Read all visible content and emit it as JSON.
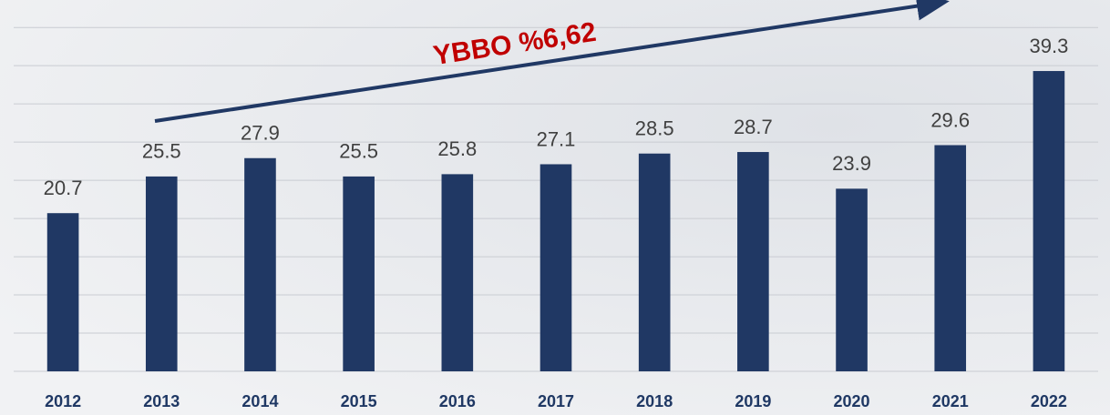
{
  "chart_data": {
    "type": "bar",
    "annotation": "YBBO %6,62",
    "categories": [
      "2012",
      "2013",
      "2014",
      "2015",
      "2016",
      "2017",
      "2018",
      "2019",
      "2020",
      "2021",
      "2022"
    ],
    "values": [
      20.7,
      25.5,
      27.9,
      25.5,
      25.8,
      27.1,
      28.5,
      28.7,
      23.9,
      29.6,
      39.3
    ],
    "color": "#203864",
    "ylim": [
      0,
      48
    ],
    "yticks": [
      0,
      5,
      10,
      15,
      20,
      25,
      30,
      35,
      40,
      45
    ],
    "grid": true
  }
}
